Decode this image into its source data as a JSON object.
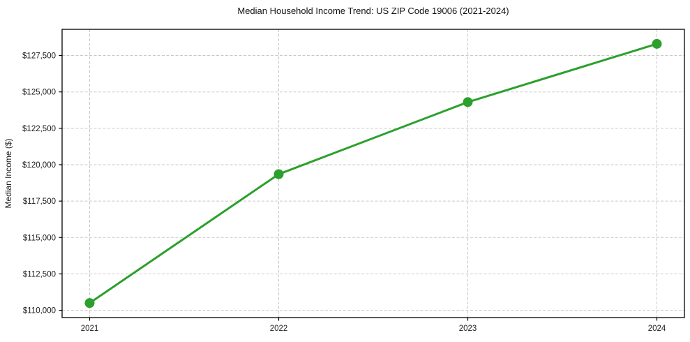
{
  "chart_data": {
    "type": "line",
    "title": "Median Household Income Trend: US ZIP Code 19006 (2021-2024)",
    "xlabel": "",
    "ylabel": "Median Income ($)",
    "categories": [
      "2021",
      "2022",
      "2023",
      "2024"
    ],
    "values": [
      110500,
      119350,
      124300,
      128300
    ],
    "ytick_values": [
      110000,
      112500,
      115000,
      117500,
      120000,
      122500,
      125000,
      127500
    ],
    "ytick_labels": [
      "$110,000",
      "$112,500",
      "$115,000",
      "$117,500",
      "$120,000",
      "$122,500",
      "$125,000",
      "$127,500"
    ],
    "ylim": [
      109500,
      129300
    ],
    "grid": true,
    "grid_style": "dashed",
    "legend": false,
    "line_color": "#2ca02c",
    "marker": "circle",
    "grid_color": "#c9c9c9",
    "frame_color": "#000000",
    "background_color": "#ffffff"
  }
}
